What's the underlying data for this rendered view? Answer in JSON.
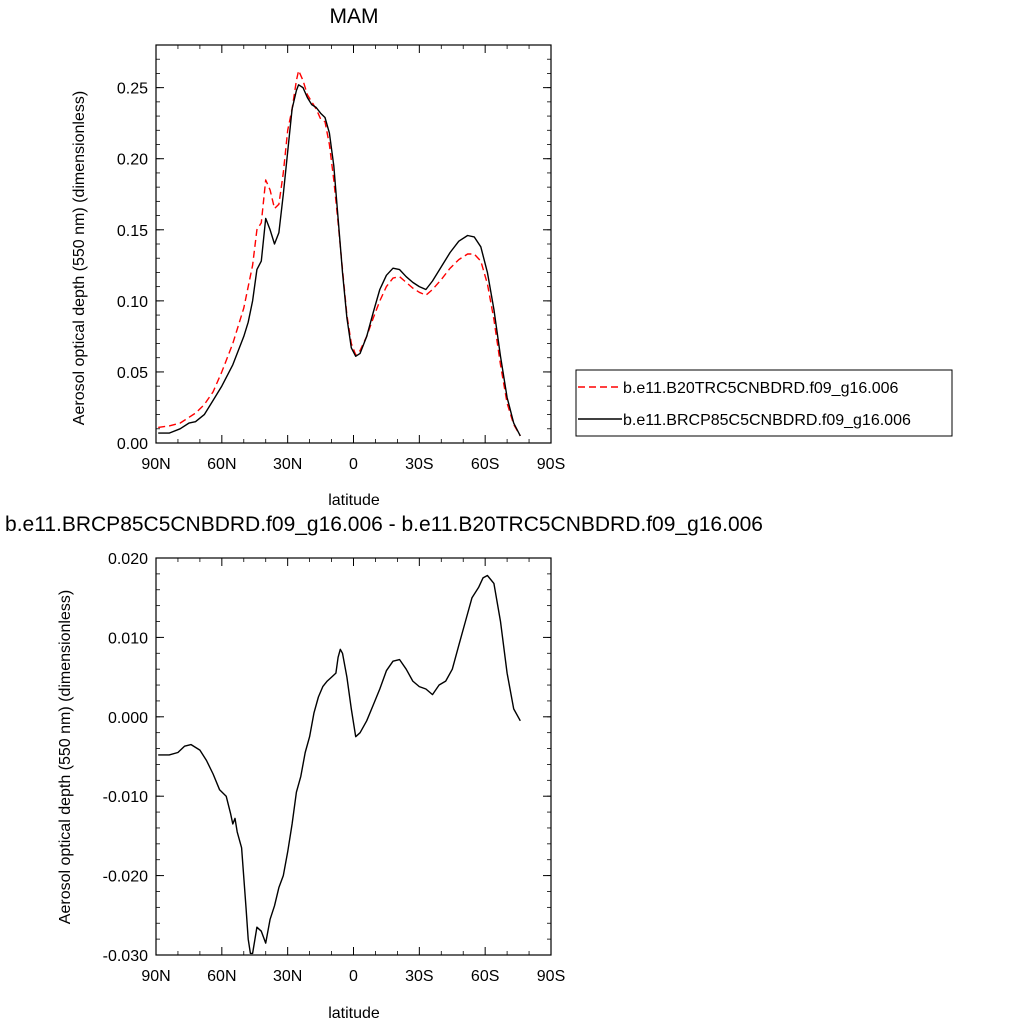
{
  "chart_data": [
    {
      "type": "line",
      "title": "MAM",
      "xlabel": "latitude",
      "ylabel": "Aerosol optical depth (550 nm) (dimensionless)",
      "xlim": [
        90,
        -90
      ],
      "ylim": [
        0.0,
        0.28
      ],
      "x_ticks": [
        90,
        60,
        30,
        0,
        -30,
        -60,
        -90
      ],
      "x_tick_labels": [
        "90N",
        "60N",
        "30N",
        "0",
        "30S",
        "60S",
        "90S"
      ],
      "y_ticks": [
        0.0,
        0.05,
        0.1,
        0.15,
        0.2,
        0.25
      ],
      "y_tick_labels": [
        "0.00",
        "0.05",
        "0.10",
        "0.15",
        "0.20",
        "0.25"
      ],
      "grid": false,
      "legend_position": "right",
      "x": [
        89,
        84,
        79,
        75,
        72,
        68,
        64,
        60,
        55,
        50,
        48,
        46,
        44,
        42,
        40,
        38,
        36,
        34,
        32,
        30,
        28,
        26,
        25,
        23,
        21,
        19,
        17,
        15,
        13,
        11,
        9,
        7,
        5,
        3,
        1,
        -1,
        -3,
        -6,
        -9,
        -12,
        -15,
        -18,
        -21,
        -24,
        -27,
        -30,
        -33,
        -36,
        -40,
        -44,
        -48,
        -52,
        -55,
        -58,
        -61,
        -64,
        -67,
        -70,
        -73,
        -76
      ],
      "series": [
        {
          "name": "b.e11.B20TRC5CNBDRD.f09_g16.006",
          "color": "#ff0000",
          "dash": "dashed",
          "values": [
            0.011,
            0.012,
            0.014,
            0.018,
            0.021,
            0.027,
            0.036,
            0.05,
            0.07,
            0.095,
            0.11,
            0.125,
            0.15,
            0.155,
            0.185,
            0.178,
            0.165,
            0.168,
            0.19,
            0.22,
            0.235,
            0.255,
            0.262,
            0.255,
            0.245,
            0.24,
            0.235,
            0.228,
            0.226,
            0.21,
            0.185,
            0.155,
            0.122,
            0.09,
            0.07,
            0.062,
            0.065,
            0.075,
            0.088,
            0.1,
            0.11,
            0.116,
            0.117,
            0.113,
            0.109,
            0.106,
            0.104,
            0.108,
            0.115,
            0.123,
            0.129,
            0.133,
            0.133,
            0.128,
            0.112,
            0.087,
            0.055,
            0.028,
            0.013,
            0.005
          ]
        },
        {
          "name": "b.e11.BRCP85C5CNBDRD.f09_g16.006",
          "color": "#000000",
          "dash": "solid",
          "values": [
            0.007,
            0.007,
            0.01,
            0.014,
            0.015,
            0.02,
            0.03,
            0.04,
            0.055,
            0.075,
            0.085,
            0.1,
            0.122,
            0.128,
            0.158,
            0.15,
            0.14,
            0.148,
            0.175,
            0.205,
            0.235,
            0.248,
            0.252,
            0.25,
            0.243,
            0.238,
            0.236,
            0.232,
            0.229,
            0.218,
            0.195,
            0.158,
            0.12,
            0.088,
            0.067,
            0.061,
            0.063,
            0.075,
            0.092,
            0.108,
            0.118,
            0.123,
            0.122,
            0.117,
            0.113,
            0.11,
            0.108,
            0.114,
            0.124,
            0.134,
            0.142,
            0.146,
            0.145,
            0.138,
            0.12,
            0.094,
            0.061,
            0.032,
            0.014,
            0.005
          ]
        }
      ]
    },
    {
      "type": "line",
      "title": "b.e11.BRCP85C5CNBDRD.f09_g16.006 - b.e11.B20TRC5CNBDRD.f09_g16.006",
      "xlabel": "latitude",
      "ylabel": "Aerosol optical depth (550 nm) (dimensionless)",
      "xlim": [
        90,
        -90
      ],
      "ylim": [
        -0.03,
        0.02
      ],
      "x_ticks": [
        90,
        60,
        30,
        0,
        -30,
        -60,
        -90
      ],
      "x_tick_labels": [
        "90N",
        "60N",
        "30N",
        "0",
        "30S",
        "60S",
        "90S"
      ],
      "y_ticks": [
        -0.03,
        -0.02,
        -0.01,
        0.0,
        0.01,
        0.02
      ],
      "y_tick_labels": [
        "-0.030",
        "-0.020",
        "-0.010",
        "0.000",
        "0.010",
        "0.020"
      ],
      "grid": false,
      "x": [
        89,
        84,
        80,
        77,
        74,
        70,
        67,
        64,
        61,
        58,
        56,
        55,
        54,
        53,
        51,
        49,
        48,
        47,
        46,
        44,
        42,
        40,
        38,
        36,
        34,
        32,
        30,
        28,
        26,
        24,
        22,
        20,
        18,
        16,
        14,
        12,
        10,
        8,
        7,
        6,
        5,
        3,
        1,
        -1,
        -3,
        -6,
        -9,
        -12,
        -15,
        -18,
        -21,
        -24,
        -27,
        -30,
        -33,
        -36,
        -39,
        -42,
        -45,
        -48,
        -51,
        -54,
        -57,
        -59,
        -61,
        -64,
        -67,
        -70,
        -73,
        -76
      ],
      "series": [
        {
          "color": "#000000",
          "values": [
            -0.0048,
            -0.0048,
            -0.0045,
            -0.0037,
            -0.0035,
            -0.0042,
            -0.0055,
            -0.0072,
            -0.0092,
            -0.01,
            -0.0122,
            -0.0135,
            -0.0128,
            -0.0145,
            -0.0165,
            -0.024,
            -0.028,
            -0.0298,
            -0.0298,
            -0.0265,
            -0.027,
            -0.0285,
            -0.0255,
            -0.0238,
            -0.0215,
            -0.02,
            -0.017,
            -0.0135,
            -0.0095,
            -0.0075,
            -0.0045,
            -0.0025,
            0.0005,
            0.0025,
            0.0038,
            0.0045,
            0.005,
            0.0055,
            0.0075,
            0.0085,
            0.008,
            0.005,
            0.001,
            -0.0025,
            -0.002,
            -0.0005,
            0.0015,
            0.0035,
            0.0058,
            0.007,
            0.0072,
            0.006,
            0.0045,
            0.0038,
            0.0035,
            0.0028,
            0.004,
            0.0045,
            0.006,
            0.009,
            0.012,
            0.015,
            0.0163,
            0.0175,
            0.0178,
            0.0168,
            0.012,
            0.0055,
            0.001,
            -0.0005
          ]
        }
      ]
    }
  ]
}
